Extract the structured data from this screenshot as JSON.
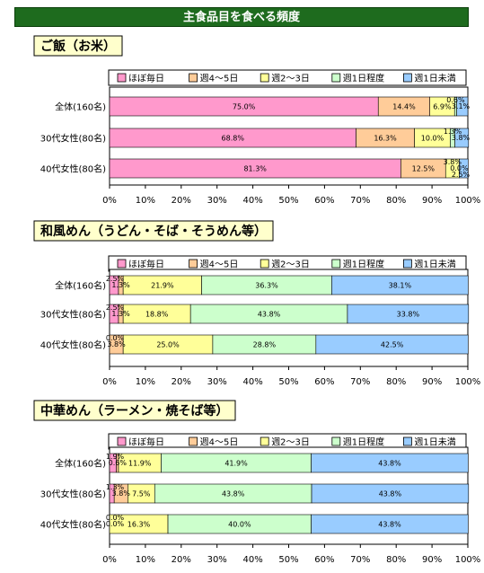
{
  "page_title": "主食品目を食べる頻度",
  "legend_items": [
    "ほぼ毎日",
    "週4〜5日",
    "週2〜3日",
    "週1日程度",
    "週1日未満"
  ],
  "colors": [
    "#ff99cc",
    "#ffcc99",
    "#ffff99",
    "#ccffcc",
    "#99ccff"
  ],
  "chart_data": [
    {
      "type": "bar",
      "orientation": "horizontal",
      "stacked": true,
      "title": "ご飯（お米）",
      "categories": [
        "全体(160名)",
        "30代女性(80名)",
        "40代女性(80名)"
      ],
      "series": [
        {
          "name": "ほぼ毎日",
          "values": [
            75.0,
            68.8,
            81.3
          ],
          "labels": [
            "75.0%",
            "68.8%",
            "81.3%"
          ]
        },
        {
          "name": "週4〜5日",
          "values": [
            14.4,
            16.3,
            12.5
          ],
          "labels": [
            "14.4%",
            "16.3%",
            "12.5%"
          ]
        },
        {
          "name": "週2〜3日",
          "values": [
            6.9,
            10.0,
            3.8
          ],
          "labels": [
            "6.9%",
            "10.0%",
            "3.8%"
          ]
        },
        {
          "name": "週1日程度",
          "values": [
            0.6,
            1.3,
            0.0
          ],
          "labels": [
            "0.6%",
            "1.3%",
            "0.0%"
          ]
        },
        {
          "name": "週1日未満",
          "values": [
            3.1,
            3.8,
            2.5
          ],
          "labels": [
            "3.1%",
            "3.8%",
            "2.5%"
          ]
        }
      ],
      "xlim": [
        0,
        100
      ],
      "ticks": [
        "0%",
        "10%",
        "20%",
        "30%",
        "40%",
        "50%",
        "60%",
        "70%",
        "80%",
        "90%",
        "100%"
      ],
      "legend": "top"
    },
    {
      "type": "bar",
      "orientation": "horizontal",
      "stacked": true,
      "title": "和風めん（うどん・そば・そうめん等）",
      "categories": [
        "全体(160名)",
        "30代女性(80名)",
        "40代女性(80名)"
      ],
      "series": [
        {
          "name": "ほぼ毎日",
          "values": [
            2.5,
            2.5,
            0.0
          ],
          "labels": [
            "2.5%",
            "2.5%",
            "0.0%"
          ]
        },
        {
          "name": "週4〜5日",
          "values": [
            1.3,
            1.3,
            3.8
          ],
          "labels": [
            "1.3%",
            "1.3%",
            "3.8%"
          ]
        },
        {
          "name": "週2〜3日",
          "values": [
            21.9,
            18.8,
            25.0
          ],
          "labels": [
            "21.9%",
            "18.8%",
            "25.0%"
          ]
        },
        {
          "name": "週1日程度",
          "values": [
            36.3,
            43.8,
            28.8
          ],
          "labels": [
            "36.3%",
            "43.8%",
            "28.8%"
          ]
        },
        {
          "name": "週1日未満",
          "values": [
            38.1,
            33.8,
            42.5
          ],
          "labels": [
            "38.1%",
            "33.8%",
            "42.5%"
          ]
        }
      ],
      "xlim": [
        0,
        100
      ],
      "ticks": [
        "0%",
        "10%",
        "20%",
        "30%",
        "40%",
        "50%",
        "60%",
        "70%",
        "80%",
        "90%",
        "100%"
      ],
      "legend": "top"
    },
    {
      "type": "bar",
      "orientation": "horizontal",
      "stacked": true,
      "title": "中華めん（ラーメン・焼そば等）",
      "categories": [
        "全体(160名)",
        "30代女性(80名)",
        "40代女性(80名)"
      ],
      "series": [
        {
          "name": "ほぼ毎日",
          "values": [
            1.9,
            1.3,
            0.0
          ],
          "labels": [
            "1.9%",
            "1.3%",
            "0.0%"
          ]
        },
        {
          "name": "週4〜5日",
          "values": [
            0.6,
            3.8,
            0.0
          ],
          "labels": [
            "0.6%",
            "3.8%",
            "0.0%"
          ]
        },
        {
          "name": "週2〜3日",
          "values": [
            11.9,
            7.5,
            16.3
          ],
          "labels": [
            "11.9%",
            "7.5%",
            "16.3%"
          ]
        },
        {
          "name": "週1日程度",
          "values": [
            41.9,
            43.8,
            40.0
          ],
          "labels": [
            "41.9%",
            "43.8%",
            "40.0%"
          ]
        },
        {
          "name": "週1日未満",
          "values": [
            43.8,
            43.8,
            43.8
          ],
          "labels": [
            "43.8%",
            "43.8%",
            "43.8%"
          ]
        }
      ],
      "xlim": [
        0,
        100
      ],
      "ticks": [
        "0%",
        "10%",
        "20%",
        "30%",
        "40%",
        "50%",
        "60%",
        "70%",
        "80%",
        "90%",
        "100%"
      ],
      "legend": "top"
    }
  ]
}
